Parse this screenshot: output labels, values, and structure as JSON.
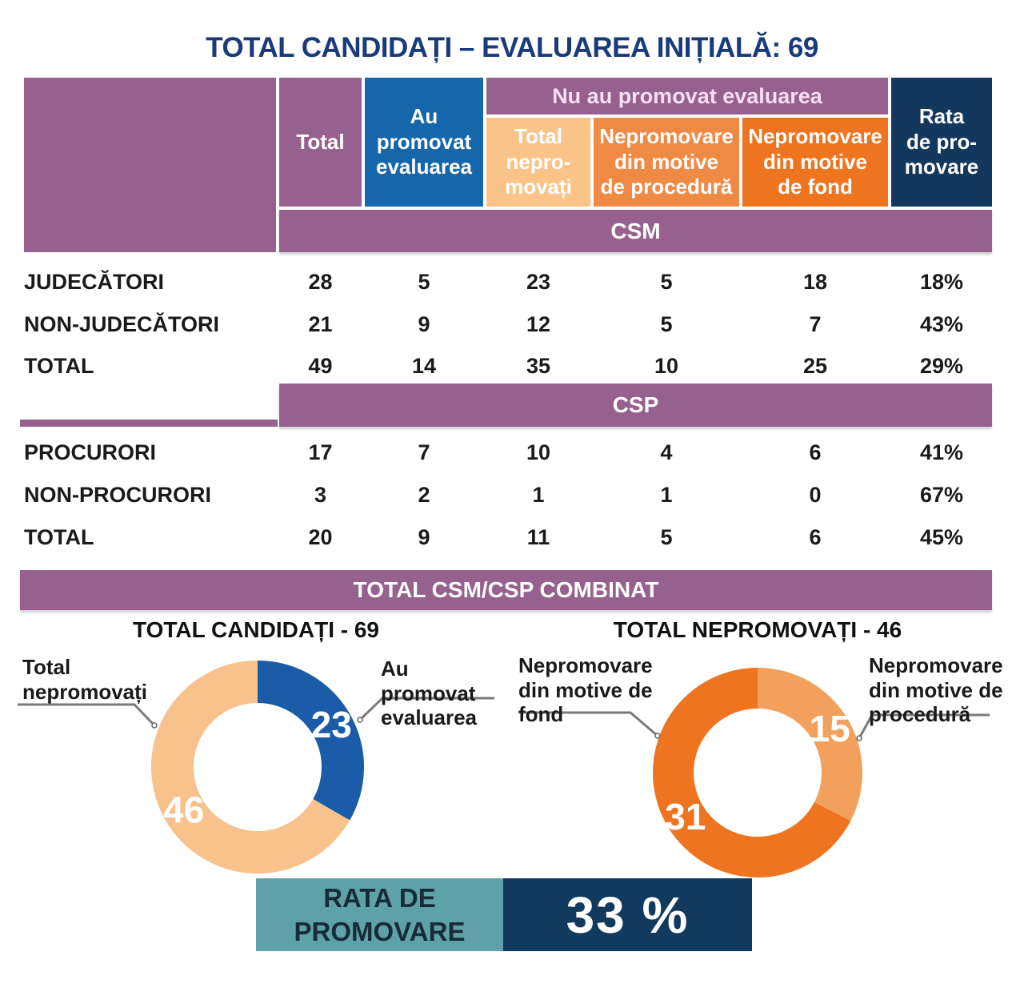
{
  "title": "TOTAL CANDIDAȚI – EVALUAREA INIȚIALĂ: 69",
  "palette": {
    "purple": "#96618F",
    "header_blue": "#1566AA",
    "light_orange": "#FAC489",
    "mid_orange": "#EF8A45",
    "dark_orange": "#EE7420",
    "header_navy": "#14375E",
    "title_blue": "#1A3B7A",
    "teal": "#5EA1A8",
    "rate_navy": "#123A5F",
    "donut_blue": "#1A5CA8",
    "donut_pale_orange": "#F7C28C",
    "donut_mid_orange": "#F2A05B",
    "donut_strong_orange": "#EE7420"
  },
  "table": {
    "headers": {
      "total": "Total",
      "promoted": "Au\npromovat\nevaluarea",
      "failed_group": "Nu au promovat evaluarea",
      "failed_total": "Total\nnepro-\nmovați",
      "failed_procedure": "Nepromovare\ndin motive\nde procedură",
      "failed_substance": "Nepromovare\ndin motive\nde fond",
      "rate": "Rata\nde pro-\nmovare"
    },
    "sections": [
      {
        "banner": "CSM",
        "rows": [
          {
            "label": "JUDECĂTORI",
            "values": [
              "28",
              "5",
              "23",
              "5",
              "18",
              "18%"
            ]
          },
          {
            "label": "NON-JUDECĂTORI",
            "values": [
              "21",
              "9",
              "12",
              "5",
              "7",
              "43%"
            ]
          },
          {
            "label": "TOTAL",
            "values": [
              "49",
              "14",
              "35",
              "10",
              "25",
              "29%"
            ]
          }
        ]
      },
      {
        "banner": "CSP",
        "rows": [
          {
            "label": "PROCURORI",
            "values": [
              "17",
              "7",
              "10",
              "4",
              "6",
              "41%"
            ]
          },
          {
            "label": "NON-PROCURORI",
            "values": [
              "3",
              "2",
              "1",
              "1",
              "0",
              "67%"
            ]
          },
          {
            "label": "TOTAL",
            "values": [
              "20",
              "9",
              "11",
              "5",
              "6",
              "45%"
            ]
          }
        ]
      }
    ],
    "combined_banner": "TOTAL CSM/CSP COMBINAT"
  },
  "chart_data": [
    {
      "type": "pie",
      "variant": "donut",
      "title": "TOTAL CANDIDAȚI - 69",
      "total": 69,
      "start_angle_deg": 0,
      "direction": "clockwise",
      "labels_shown": "values",
      "slices": [
        {
          "label": "Au promovat evaluarea",
          "value": 23,
          "color": "#1A5CA8"
        },
        {
          "label": "Total nepromovați",
          "value": 46,
          "color": "#F7C28C"
        }
      ]
    },
    {
      "type": "pie",
      "variant": "donut",
      "title": "TOTAL NEPROMOVAȚI - 46",
      "total": 46,
      "start_angle_deg": 0,
      "direction": "clockwise",
      "labels_shown": "values",
      "slices": [
        {
          "label": "Nepromovare din motive de procedură",
          "value": 15,
          "color": "#F2A05B"
        },
        {
          "label": "Nepromovare din motive de fond",
          "value": 31,
          "color": "#EE7420"
        }
      ]
    }
  ],
  "rate_bar": {
    "label": "RATA DE\nPROMOVARE",
    "value": "33 %"
  }
}
